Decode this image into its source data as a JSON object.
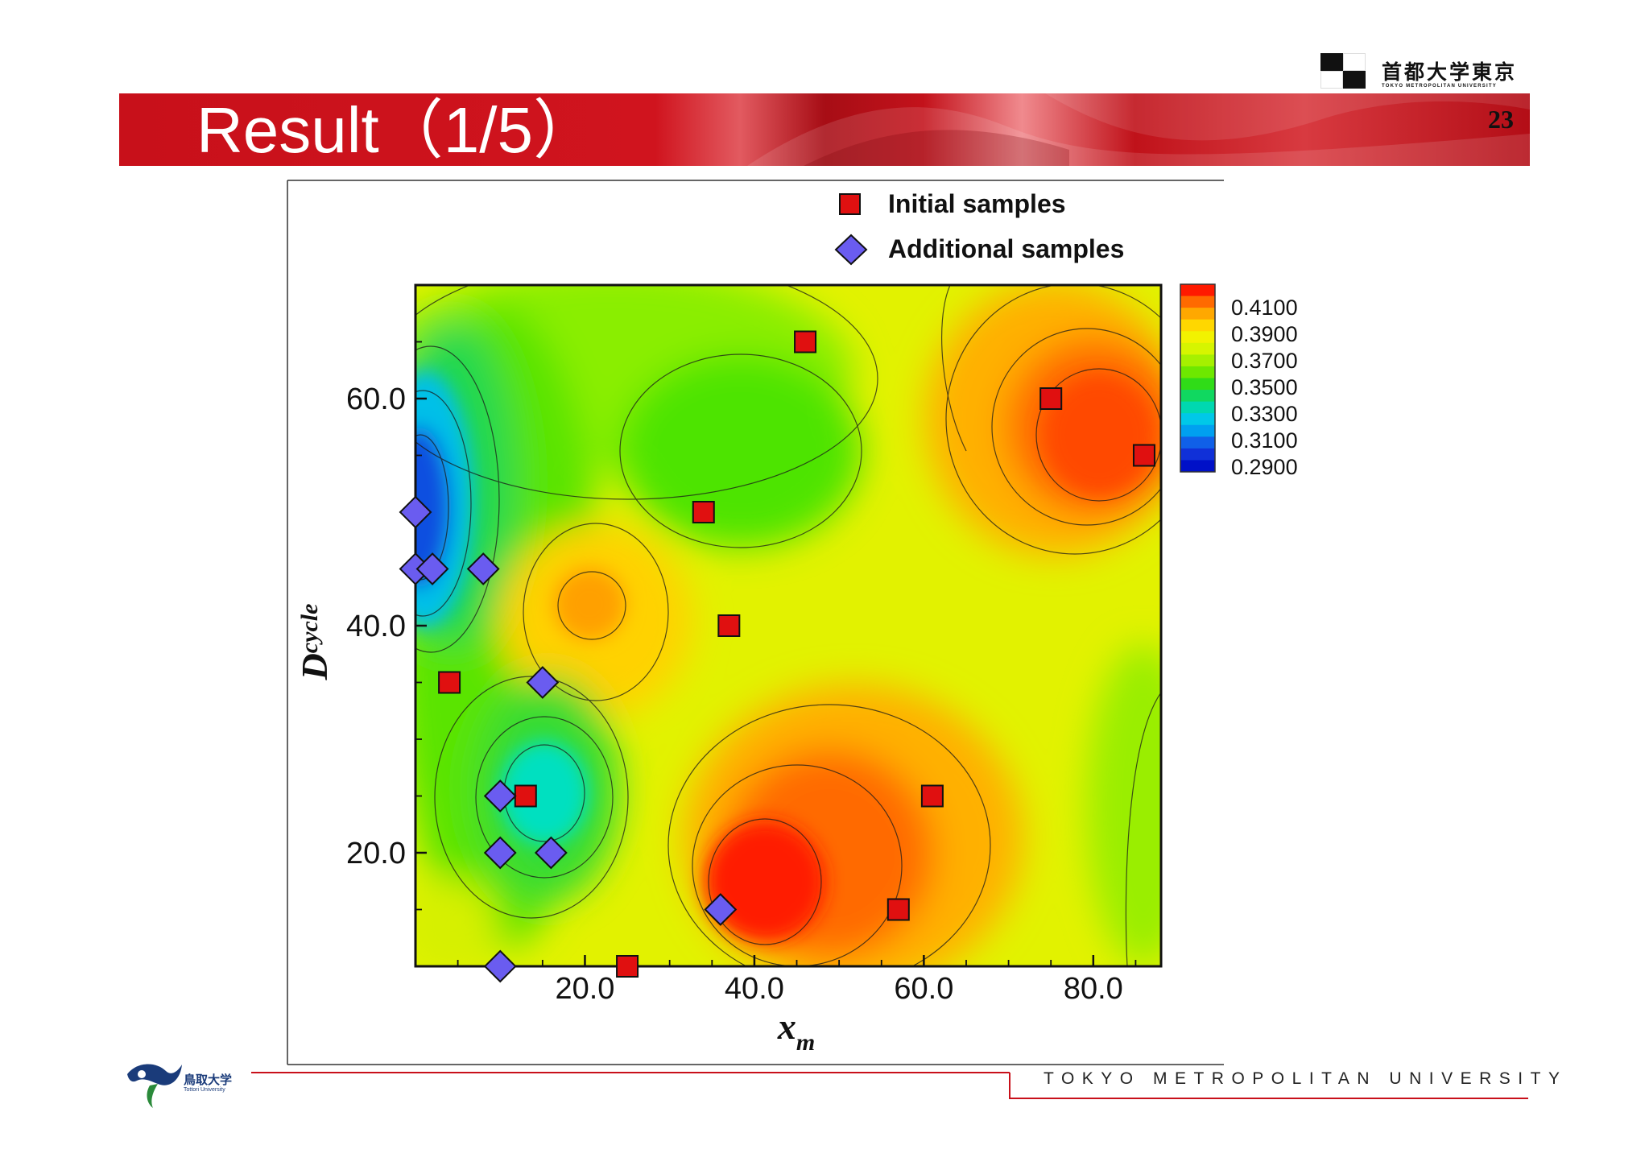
{
  "slide": {
    "title": "Result（1/5）",
    "page_number": "23",
    "footer_text": "TOKYO METROPOLITAN UNIVERSITY"
  },
  "header_logo": {
    "name_jp": "首都大学東京",
    "name_en": "TOKYO METROPOLITAN UNIVERSITY"
  },
  "footer_logo": {
    "name_jp": "鳥取大学",
    "name_en": "Tottori University"
  },
  "colors": {
    "title_band": "#c8101a",
    "initial_marker": "#e01010",
    "additional_marker": "#6a5cf0",
    "footer_line": "#c8101a"
  },
  "chart_data": {
    "type": "contour",
    "xlabel": "x",
    "xlabel_sub": "m",
    "ylabel": "D",
    "ylabel_sub": "cycle",
    "xlim": [
      0,
      88
    ],
    "ylim": [
      10,
      70
    ],
    "xticks": [
      "20.0",
      "40.0",
      "60.0",
      "80.0"
    ],
    "yticks": [
      "20.0",
      "40.0",
      "60.0"
    ],
    "colorbar": {
      "labels": [
        "0.4100",
        "0.3900",
        "0.3700",
        "0.3500",
        "0.3300",
        "0.3100",
        "0.2900"
      ],
      "colors": [
        "#ff1a00",
        "#ff6a00",
        "#ffa800",
        "#ffd700",
        "#f2f200",
        "#d6f500",
        "#a6f000",
        "#6ee800",
        "#30dc18",
        "#10d860",
        "#00d8b0",
        "#00c8e8",
        "#00a0f0",
        "#1060e8",
        "#1030d8",
        "#0010c8"
      ]
    },
    "legend": {
      "position": "top",
      "entries": [
        {
          "label": "Initial samples",
          "marker": "square"
        },
        {
          "label": "Additional samples",
          "marker": "diamond"
        }
      ]
    },
    "series": [
      {
        "name": "Initial samples",
        "marker": "square",
        "points": [
          [
            4,
            35
          ],
          [
            13,
            25
          ],
          [
            25,
            10
          ],
          [
            34,
            50
          ],
          [
            37,
            40
          ],
          [
            46,
            65
          ],
          [
            57,
            15
          ],
          [
            61,
            25
          ],
          [
            75,
            60
          ],
          [
            86,
            55
          ]
        ]
      },
      {
        "name": "Additional samples",
        "marker": "diamond",
        "points": [
          [
            0,
            50
          ],
          [
            0,
            45
          ],
          [
            2,
            45
          ],
          [
            8,
            45
          ],
          [
            15,
            35
          ],
          [
            10,
            25
          ],
          [
            10,
            20
          ],
          [
            16,
            20
          ],
          [
            10,
            10
          ],
          [
            36,
            15
          ]
        ]
      }
    ]
  }
}
